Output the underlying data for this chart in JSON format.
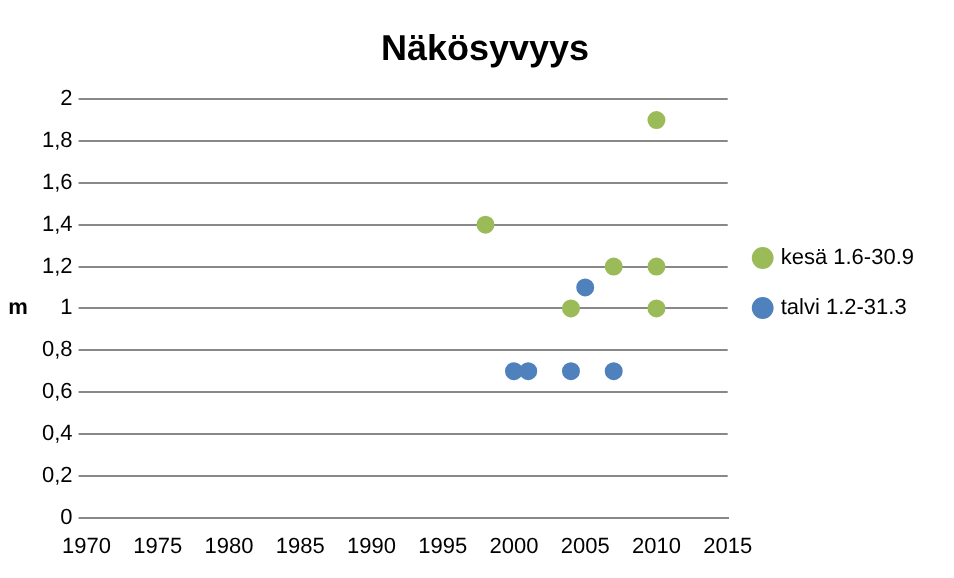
{
  "chart_data": {
    "type": "scatter",
    "title": "Näkösyvyys",
    "ylabel": "m",
    "xlim": [
      1970,
      2015
    ],
    "xticks": [
      1970,
      1975,
      1980,
      1985,
      1990,
      1995,
      2000,
      2005,
      2010,
      2015
    ],
    "ylim": [
      0,
      2
    ],
    "yticks": [
      {
        "value": 0,
        "label": "0"
      },
      {
        "value": 0.2,
        "label": "0,2"
      },
      {
        "value": 0.4,
        "label": "0,4"
      },
      {
        "value": 0.6,
        "label": "0,6"
      },
      {
        "value": 0.8,
        "label": "0,8"
      },
      {
        "value": 1,
        "label": "1"
      },
      {
        "value": 1.2,
        "label": "1,2"
      },
      {
        "value": 1.4,
        "label": "1,4"
      },
      {
        "value": 1.6,
        "label": "1,6"
      },
      {
        "value": 1.8,
        "label": "1,8"
      },
      {
        "value": 2,
        "label": "2"
      }
    ],
    "grid": "y",
    "legend": "right",
    "marker": "circle",
    "series": [
      {
        "name": "kesä 1.6-30.9",
        "color": "#9bbb59",
        "x": [
          1998,
          2004,
          2007,
          2010,
          2010,
          2010
        ],
        "values": [
          1.4,
          1,
          1.2,
          1.9,
          1.2,
          1
        ]
      },
      {
        "name": "talvi 1.2-31.3",
        "color": "#4f81bd",
        "x": [
          2000,
          2001,
          2004,
          2005,
          2007
        ],
        "values": [
          0.7,
          0.7,
          0.7,
          1.1,
          0.7
        ]
      }
    ]
  }
}
